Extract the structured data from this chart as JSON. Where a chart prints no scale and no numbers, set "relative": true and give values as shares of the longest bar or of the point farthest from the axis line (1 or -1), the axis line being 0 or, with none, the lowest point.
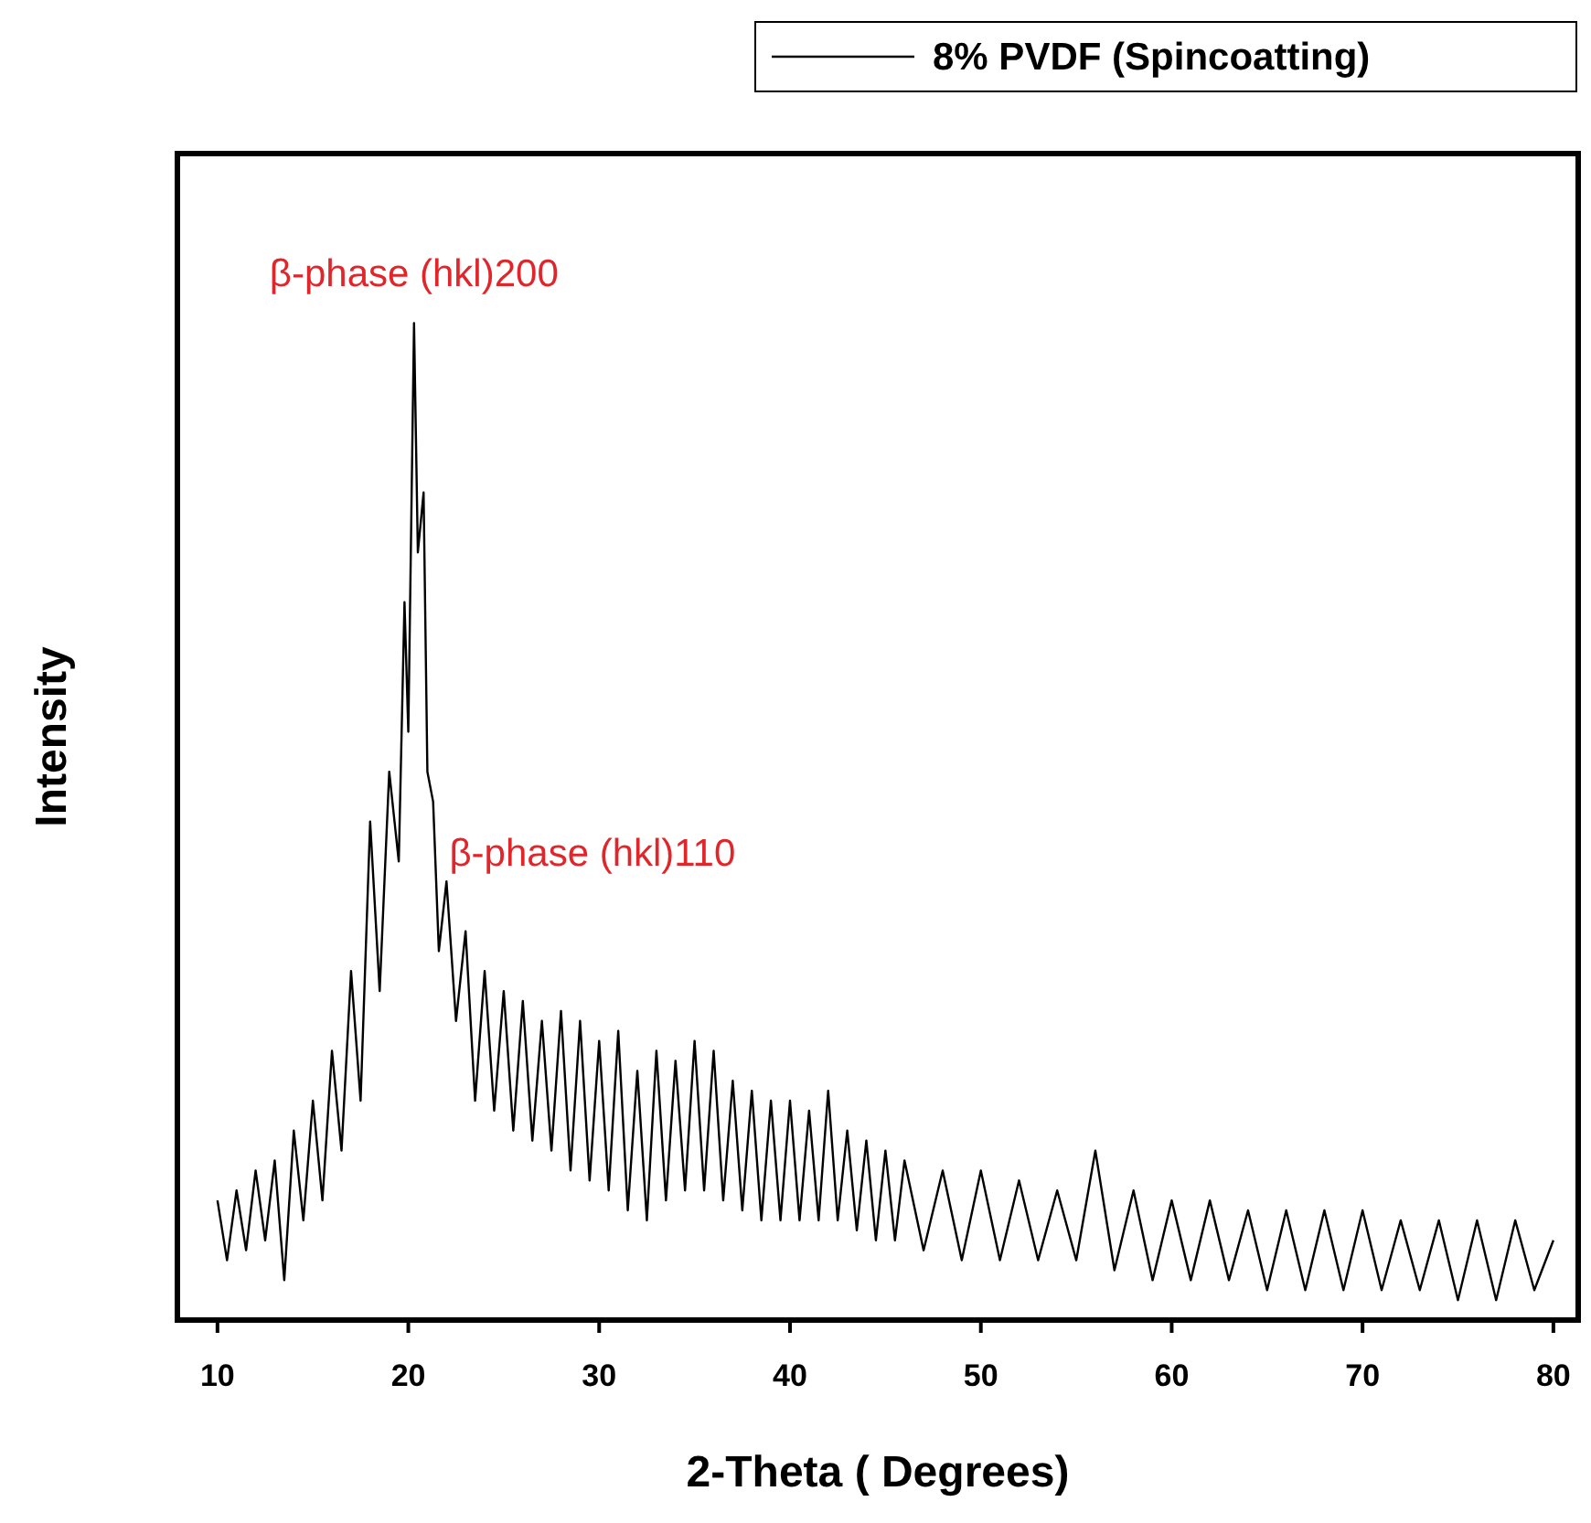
{
  "chart_data": {
    "type": "line",
    "relative": true,
    "xlabel": "2-Theta ( Degrees)",
    "ylabel": "Intensity",
    "xlim": [
      7.9,
      81.3
    ],
    "xticks": [
      10,
      20,
      30,
      40,
      50,
      60,
      70,
      80
    ],
    "legend": "top right",
    "annotations": [
      {
        "text": "β-phase (hkl)200",
        "x": 20.3,
        "y": 1
      },
      {
        "text": "β-phase (hkl)110",
        "x": 21,
        "y": 0.47
      }
    ],
    "series": [
      {
        "name": "8% PVDF (Spincoatting)",
        "color": "#000000",
        "x": [
          10,
          10.5,
          11,
          11.5,
          12,
          12.5,
          13,
          13.5,
          14,
          14.5,
          15,
          15.5,
          16,
          16.5,
          17,
          17.5,
          18,
          18.5,
          19,
          19.5,
          19.8,
          20,
          20.3,
          20.5,
          20.8,
          21,
          21.3,
          21.6,
          22,
          22.5,
          23,
          23.5,
          24,
          24.5,
          25,
          25.5,
          26,
          26.5,
          27,
          27.5,
          28,
          28.5,
          29,
          29.5,
          30,
          30.5,
          31,
          31.5,
          32,
          32.5,
          33,
          33.5,
          34,
          34.5,
          35,
          35.5,
          36,
          36.5,
          37,
          37.5,
          38,
          38.5,
          39,
          39.5,
          40,
          40.5,
          41,
          41.5,
          42,
          42.5,
          43,
          43.5,
          44,
          44.5,
          45,
          45.5,
          46,
          47,
          48,
          49,
          50,
          51,
          52,
          53,
          54,
          55,
          56,
          57,
          58,
          59,
          60,
          61,
          62,
          63,
          64,
          65,
          66,
          67,
          68,
          69,
          70,
          71,
          72,
          73,
          74,
          75,
          76,
          77,
          78,
          79,
          80
        ],
        "values": [
          0.12,
          0.06,
          0.13,
          0.07,
          0.15,
          0.08,
          0.16,
          0.04,
          0.19,
          0.1,
          0.22,
          0.12,
          0.27,
          0.17,
          0.35,
          0.22,
          0.5,
          0.33,
          0.55,
          0.46,
          0.72,
          0.59,
          1,
          0.77,
          0.83,
          0.55,
          0.52,
          0.37,
          0.44,
          0.3,
          0.39,
          0.22,
          0.35,
          0.21,
          0.33,
          0.19,
          0.32,
          0.18,
          0.3,
          0.17,
          0.31,
          0.15,
          0.3,
          0.14,
          0.28,
          0.13,
          0.29,
          0.11,
          0.25,
          0.1,
          0.27,
          0.12,
          0.26,
          0.13,
          0.28,
          0.13,
          0.27,
          0.12,
          0.24,
          0.11,
          0.23,
          0.1,
          0.22,
          0.1,
          0.22,
          0.1,
          0.21,
          0.1,
          0.23,
          0.1,
          0.19,
          0.09,
          0.18,
          0.08,
          0.17,
          0.08,
          0.16,
          0.07,
          0.15,
          0.06,
          0.15,
          0.06,
          0.14,
          0.06,
          0.13,
          0.06,
          0.17,
          0.05,
          0.13,
          0.04,
          0.12,
          0.04,
          0.12,
          0.04,
          0.11,
          0.03,
          0.11,
          0.03,
          0.11,
          0.03,
          0.11,
          0.03,
          0.1,
          0.03,
          0.1,
          0.02,
          0.1,
          0.02,
          0.1,
          0.03,
          0.08
        ]
      }
    ]
  }
}
